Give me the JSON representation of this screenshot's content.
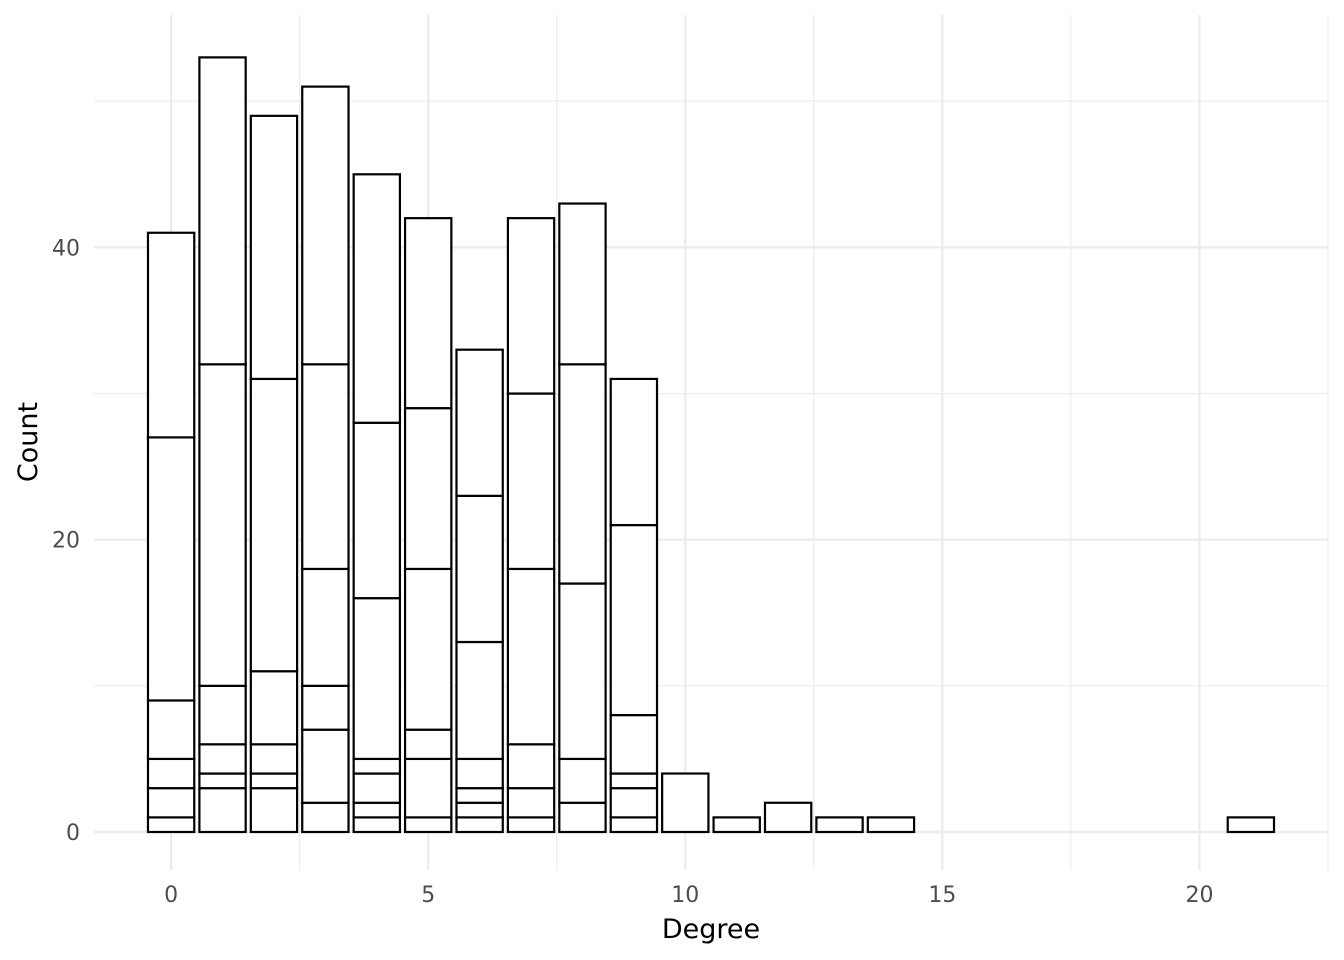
{
  "chart_data": {
    "type": "bar",
    "stacked": true,
    "xlabel": "Degree",
    "ylabel": "Count",
    "xlim": [
      -1.5,
      22.5
    ],
    "ylim": [
      -2.6,
      55.9
    ],
    "grid": true,
    "legend": "none",
    "x_ticks": [
      0,
      5,
      10,
      15,
      20
    ],
    "y_ticks": [
      0,
      20,
      40
    ],
    "x_tick_labels": [
      "0",
      "5",
      "10",
      "15",
      "20"
    ],
    "y_tick_labels": [
      "0",
      "20",
      "40"
    ],
    "x": [
      0,
      1,
      2,
      3,
      4,
      5,
      6,
      7,
      8,
      9,
      10,
      11,
      12,
      13,
      14,
      21
    ],
    "stack_boundaries": [
      [
        1,
        3,
        5,
        9,
        27,
        41
      ],
      [
        3,
        4,
        6,
        10,
        32,
        53
      ],
      [
        3,
        4,
        6,
        11,
        31,
        49
      ],
      [
        2,
        7,
        10,
        18,
        32,
        51
      ],
      [
        1,
        2,
        4,
        5,
        16,
        28,
        45
      ],
      [
        1,
        5,
        7,
        18,
        29,
        42
      ],
      [
        1,
        2,
        3,
        5,
        13,
        23,
        33
      ],
      [
        1,
        3,
        6,
        18,
        30,
        42
      ],
      [
        2,
        5,
        17,
        32,
        43
      ],
      [
        1,
        3,
        4,
        8,
        21,
        31
      ],
      [
        4
      ],
      [
        1
      ],
      [
        2
      ],
      [
        1
      ],
      [
        1
      ],
      [
        1
      ]
    ],
    "totals": [
      41,
      53,
      49,
      51,
      45,
      42,
      33,
      42,
      43,
      31,
      4,
      1,
      2,
      1,
      1,
      1
    ]
  }
}
